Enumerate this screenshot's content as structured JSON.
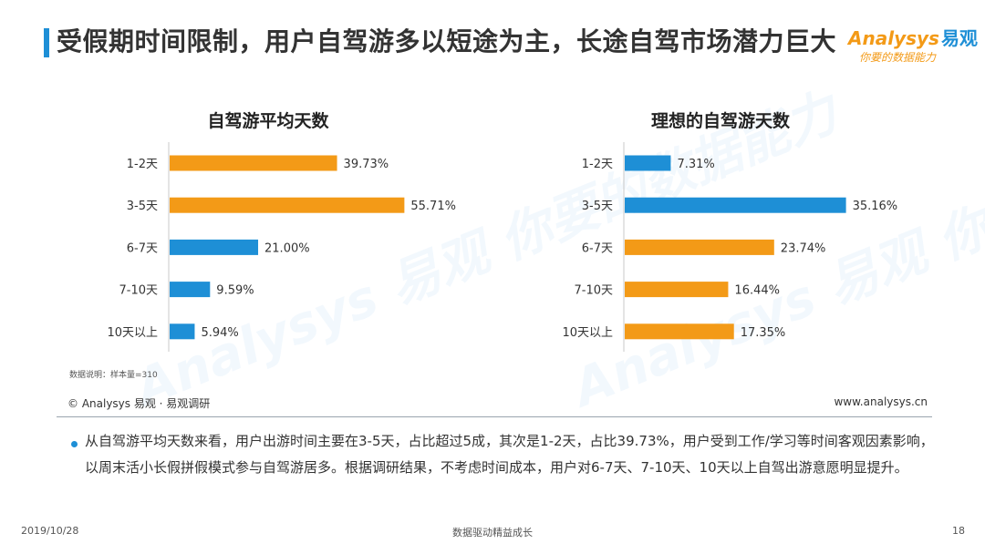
{
  "slide": {
    "title": "受假期时间限制，用户自驾游多以短途为主，长途自驾市场潜力巨大",
    "logo": {
      "mark": "Analysys",
      "cn": "易观",
      "tagline": "你要的数据能力"
    },
    "watermark": "Analysys 易观 你要的数据能力",
    "note": "数据说明：样本量=310",
    "copyright": "© Analysys 易观 · 易观调研",
    "website": "www.analysys.cn",
    "summary": "从自驾游平均天数来看，用户出游时间主要在3-5天，占比超过5成，其次是1-2天，占比39.73%，用户受到工作/学习等时间客观因素影响，以周末活小长假拼假模式参与自驾游居多。根据调研结果，不考虑时间成本，用户对6-7天、7-10天、10天以上自驾出游意愿明显提升。",
    "footer": {
      "date": "2019/10/28",
      "center": "数据驱动精益成长",
      "page": "18"
    }
  },
  "colors": {
    "orange": "#f39a17",
    "blue": "#1e8fd6",
    "accent": "#1e8fd6"
  },
  "chart_data": [
    {
      "type": "bar",
      "orientation": "horizontal",
      "title": "自驾游平均天数",
      "categories": [
        "1-2天",
        "3-5天",
        "6-7天",
        "7-10天",
        "10天以上"
      ],
      "values": [
        39.73,
        55.71,
        21.0,
        9.59,
        5.94
      ],
      "value_labels": [
        "39.73%",
        "55.71%",
        "21.00%",
        "9.59%",
        "5.94%"
      ],
      "bar_colors": [
        "#f39a17",
        "#f39a17",
        "#1e8fd6",
        "#1e8fd6",
        "#1e8fd6"
      ],
      "xlim": [
        0,
        70
      ],
      "grid": false,
      "legend": "none"
    },
    {
      "type": "bar",
      "orientation": "horizontal",
      "title": "理想的自驾游天数",
      "categories": [
        "1-2天",
        "3-5天",
        "6-7天",
        "7-10天",
        "10天以上"
      ],
      "values": [
        7.31,
        35.16,
        23.74,
        16.44,
        17.35
      ],
      "value_labels": [
        "7.31%",
        "35.16%",
        "23.74%",
        "16.44%",
        "17.35%"
      ],
      "bar_colors": [
        "#1e8fd6",
        "#1e8fd6",
        "#f39a17",
        "#f39a17",
        "#f39a17"
      ],
      "xlim": [
        0,
        45
      ],
      "grid": false,
      "legend": "none"
    }
  ]
}
